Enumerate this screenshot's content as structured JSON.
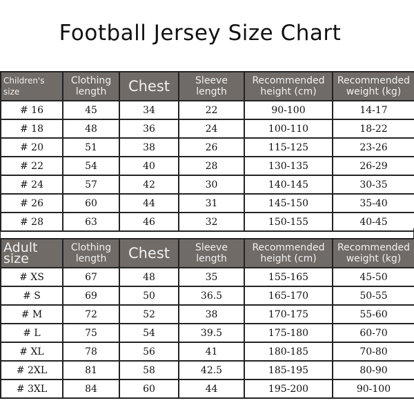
{
  "title": "Football Jersey Size Chart",
  "children": {
    "headers": [
      "Children's size",
      "Clothing length",
      "Chest",
      "Sleeve length",
      "Recommended height (cm)",
      "Recommended weight (kg)"
    ],
    "rows": [
      [
        "# 16",
        "45",
        "34",
        "22",
        "90-100",
        "14-17"
      ],
      [
        "# 18",
        "48",
        "36",
        "24",
        "100-110",
        "18-22"
      ],
      [
        "# 20",
        "51",
        "38",
        "26",
        "115-125",
        "23-26"
      ],
      [
        "# 22",
        "54",
        "40",
        "28",
        "130-135",
        "26-29"
      ],
      [
        "# 24",
        "57",
        "42",
        "30",
        "140-145",
        "30-35"
      ],
      [
        "# 26",
        "60",
        "44",
        "31",
        "145-150",
        "35-40"
      ],
      [
        "# 28",
        "63",
        "46",
        "32",
        "150-155",
        "40-45"
      ]
    ]
  },
  "adult": {
    "headers": [
      "Adult size",
      "Clothing length",
      "Chest",
      "Sleeve length",
      "Recommended height (cm)",
      "Recommended weight (kg)"
    ],
    "rows": [
      [
        "# XS",
        "67",
        "48",
        "35",
        "155-165",
        "45-50"
      ],
      [
        "# S",
        "69",
        "50",
        "36.5",
        "165-170",
        "50-55"
      ],
      [
        "# M",
        "72",
        "52",
        "38",
        "170-175",
        "55-60"
      ],
      [
        "# L",
        "75",
        "54",
        "39.5",
        "175-180",
        "60-70"
      ],
      [
        "# XL",
        "78",
        "56",
        "41",
        "180-185",
        "70-80"
      ],
      [
        "# 2XL",
        "81",
        "58",
        "42.5",
        "185-195",
        "80-90"
      ],
      [
        "# 3XL",
        "84",
        "60",
        "44",
        "195-200",
        "90-100"
      ]
    ]
  },
  "colors": {
    "header_bg": "#706b67"
  }
}
